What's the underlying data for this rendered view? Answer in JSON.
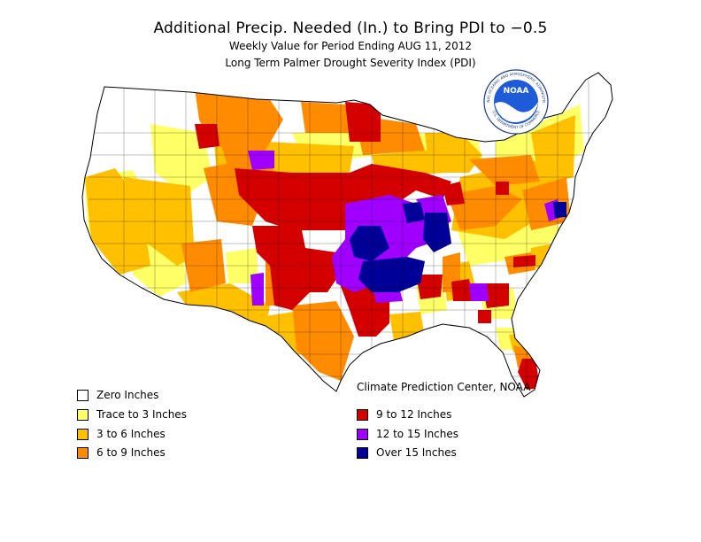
{
  "title": "Additional Precip. Needed (In.) to Bring PDI to −0.5",
  "subtitle": "Weekly Value for Period Ending AUG 11, 2012",
  "index_name": "Long Term Palmer Drought Severity Index (PDI)",
  "credit": "Climate Prediction Center, NOAA",
  "logo": {
    "text": "NOAA",
    "ring_text_top": "NATIONAL OCEANIC AND ATMOSPHERIC ADMINISTRATION",
    "ring_text_bottom": "U.S. DEPARTMENT OF COMMERCE"
  },
  "legend": [
    {
      "label": "Zero Inches",
      "color": "#ffffff"
    },
    {
      "label": "Trace to 3 Inches",
      "color": "#ffff66"
    },
    {
      "label": "3 to 6 Inches",
      "color": "#ffc000"
    },
    {
      "label": "6 to 9 Inches",
      "color": "#ff8c00"
    },
    {
      "label": "9 to 12 Inches",
      "color": "#d40000"
    },
    {
      "label": "12 to 15 Inches",
      "color": "#a000ff"
    },
    {
      "label": "Over 15 Inches",
      "color": "#000099"
    }
  ]
}
